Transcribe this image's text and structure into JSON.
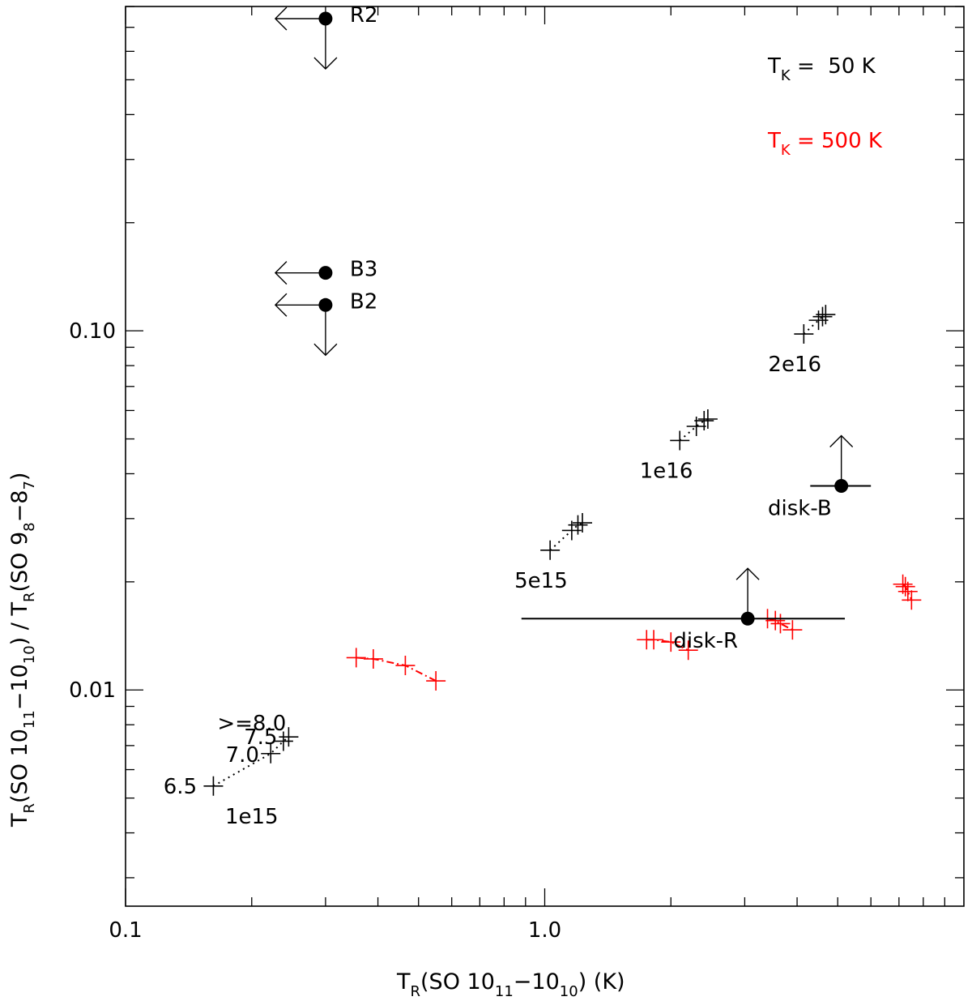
{
  "chart_data": {
    "type": "scatter",
    "title": "",
    "x_scale": "log",
    "y_scale": "log",
    "xlim": [
      0.1,
      10
    ],
    "ylim": [
      0.0025,
      0.8
    ],
    "grid": false,
    "xlabel": {
      "main": "T",
      "sub1": "R",
      "text1": "(SO 10",
      "sub2": "11",
      "text2": "−10",
      "sub3": "10",
      "text3": ") (K)"
    },
    "ylabel": {
      "main": "T",
      "sub1": "R",
      "text1": "(SO 10",
      "sub2": "11",
      "text2": "−10",
      "sub3": "10",
      "text3": ") / T",
      "sub4": "R",
      "text4": "(SO 9",
      "sub5": "8",
      "text5": "−8",
      "sub6": "7",
      "text6": ")"
    },
    "x_tick_labels": [
      {
        "value": 0.1,
        "label": "0.1"
      },
      {
        "value": 1.0,
        "label": "1.0"
      }
    ],
    "y_tick_labels": [
      {
        "value": 0.01,
        "label": "0.01"
      },
      {
        "value": 0.1,
        "label": "0.10"
      }
    ],
    "legend": [
      {
        "prefix": "T",
        "sub": "K",
        "text": " =  50 K",
        "color": "#000000"
      },
      {
        "prefix": "T",
        "sub": "K",
        "text": " = 500 K",
        "color": "#ff0000"
      }
    ],
    "model_series": [
      {
        "temperature_K": 50,
        "column_density_label": "1e15",
        "color": "#000000",
        "points": [
          [
            0.162,
            0.0054
          ],
          [
            0.222,
            0.00665
          ],
          [
            0.238,
            0.0072
          ],
          [
            0.245,
            0.0074
          ]
        ]
      },
      {
        "temperature_K": 50,
        "column_density_label": "5e15",
        "color": "#000000",
        "points": [
          [
            1.03,
            0.0245
          ],
          [
            1.16,
            0.0278
          ],
          [
            1.2,
            0.0288
          ],
          [
            1.23,
            0.0292
          ]
        ]
      },
      {
        "temperature_K": 50,
        "column_density_label": "1e16",
        "color": "#000000",
        "points": [
          [
            2.1,
            0.0495
          ],
          [
            2.3,
            0.0542
          ],
          [
            2.4,
            0.0562
          ],
          [
            2.45,
            0.0568
          ]
        ]
      },
      {
        "temperature_K": 50,
        "column_density_label": "2e16",
        "color": "#000000",
        "points": [
          [
            4.15,
            0.098
          ],
          [
            4.5,
            0.107
          ],
          [
            4.6,
            0.1095
          ],
          [
            4.68,
            0.111
          ]
        ]
      },
      {
        "temperature_K": 500,
        "column_density_label": "1e15",
        "color": "#ff0000",
        "points": [
          [
            0.355,
            0.0123
          ],
          [
            0.39,
            0.0122
          ],
          [
            0.465,
            0.0117
          ],
          [
            0.55,
            0.0106
          ]
        ]
      },
      {
        "temperature_K": 500,
        "column_density_label": "5e15",
        "color": "#ff0000",
        "points": [
          [
            1.75,
            0.0138
          ],
          [
            1.82,
            0.0138
          ],
          [
            2.0,
            0.0136
          ],
          [
            2.2,
            0.0129
          ]
        ]
      },
      {
        "temperature_K": 500,
        "column_density_label": "1e16",
        "color": "#ff0000",
        "points": [
          [
            3.4,
            0.0158
          ],
          [
            3.55,
            0.0156
          ],
          [
            3.65,
            0.0153
          ],
          [
            3.9,
            0.0147
          ]
        ]
      },
      {
        "temperature_K": 500,
        "column_density_label": "2e16",
        "color": "#ff0000",
        "points": [
          [
            7.15,
            0.0197
          ],
          [
            7.25,
            0.0194
          ],
          [
            7.35,
            0.0188
          ],
          [
            7.5,
            0.0178
          ]
        ]
      }
    ],
    "temperature_labels": [
      {
        "label": "6.5",
        "x": 0.135,
        "y": 0.0054
      },
      {
        "label": "7.0",
        "x": 0.19,
        "y": 0.0066
      },
      {
        "label": "7.5",
        "x": 0.21,
        "y": 0.0074
      },
      {
        "label": ">=8.0",
        "x": 0.2,
        "y": 0.0081
      }
    ],
    "observations": [
      {
        "name": "R2",
        "x": 0.3,
        "y": 0.74,
        "x_upper_limit": true,
        "y_upper_limit": true,
        "x_err": null
      },
      {
        "name": "B3",
        "x": 0.3,
        "y": 0.145,
        "x_upper_limit": true,
        "y_upper_limit": false,
        "x_err": null
      },
      {
        "name": "B2",
        "x": 0.3,
        "y": 0.118,
        "x_upper_limit": true,
        "y_upper_limit": true,
        "x_err": null
      },
      {
        "name": "disk-B",
        "x": 5.1,
        "y": 0.037,
        "x_upper_limit": false,
        "y_lower_limit": true,
        "x_err": [
          4.3,
          6.0
        ]
      },
      {
        "name": "disk-R",
        "x": 3.05,
        "y": 0.0158,
        "x_upper_limit": false,
        "y_lower_limit": true,
        "x_err": [
          0.88,
          5.2
        ]
      }
    ]
  }
}
